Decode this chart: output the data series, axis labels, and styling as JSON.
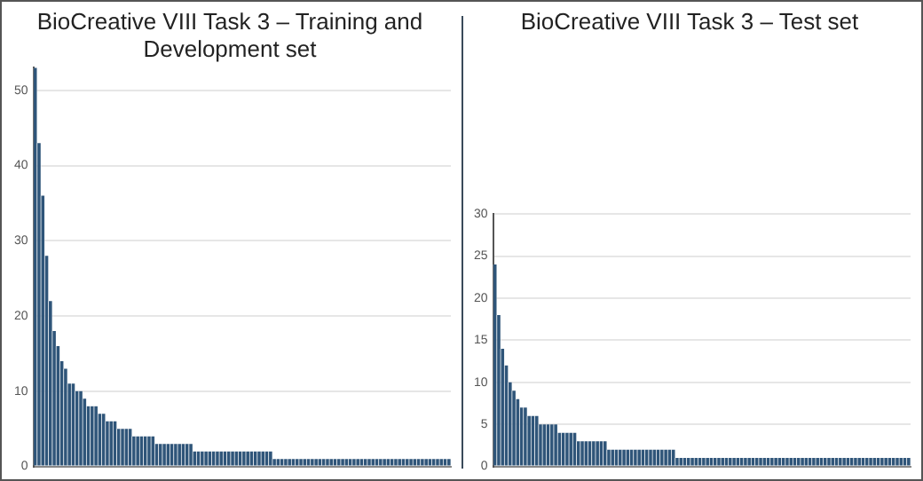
{
  "chart_data": [
    {
      "type": "bar",
      "title": "BioCreative VIII Task 3 – Training and Development set",
      "categories": [
        null,
        null,
        null,
        null,
        null,
        null,
        null,
        null,
        null,
        null,
        null,
        null,
        null,
        null,
        null,
        null,
        null,
        null,
        null,
        null,
        null,
        null,
        null,
        null,
        null,
        null,
        null,
        null,
        null,
        null,
        null,
        null,
        null,
        null,
        null,
        null,
        null,
        null,
        null,
        null,
        null,
        null,
        null,
        null,
        null,
        null,
        null,
        null,
        null,
        null,
        null,
        null,
        null,
        null,
        null,
        null,
        null,
        null,
        null,
        null,
        null,
        null,
        null,
        null,
        null,
        null,
        null,
        null,
        null,
        null,
        null,
        null,
        null,
        null,
        null,
        null,
        null,
        null,
        null,
        null,
        null,
        null,
        null,
        null,
        null,
        null,
        null,
        null,
        null,
        null,
        null,
        null,
        null,
        null,
        null,
        null,
        null,
        null,
        null,
        null,
        null,
        null,
        null,
        null,
        null,
        null,
        null,
        null,
        null,
        null
      ],
      "values": [
        53,
        43,
        36,
        28,
        22,
        18,
        16,
        14,
        13,
        11,
        11,
        10,
        10,
        9,
        8,
        8,
        8,
        7,
        7,
        6,
        6,
        6,
        5,
        5,
        5,
        5,
        4,
        4,
        4,
        4,
        4,
        4,
        3,
        3,
        3,
        3,
        3,
        3,
        3,
        3,
        3,
        3,
        2,
        2,
        2,
        2,
        2,
        2,
        2,
        2,
        2,
        2,
        2,
        2,
        2,
        2,
        2,
        2,
        2,
        2,
        2,
        2,
        2,
        1,
        1,
        1,
        1,
        1,
        1,
        1,
        1,
        1,
        1,
        1,
        1,
        1,
        1,
        1,
        1,
        1,
        1,
        1,
        1,
        1,
        1,
        1,
        1,
        1,
        1,
        1,
        1,
        1,
        1,
        1,
        1,
        1,
        1,
        1,
        1,
        1,
        1,
        1,
        1,
        1,
        1,
        1,
        1,
        1,
        1,
        1
      ],
      "color": "#2f5579",
      "ylim": [
        0,
        53
      ],
      "yticks": [
        0,
        10,
        20,
        30,
        40,
        50
      ],
      "grid": "y",
      "tick_labels": "y"
    },
    {
      "type": "bar",
      "title": "BioCreative VIII Task 3 – Test set",
      "categories": [
        null,
        null,
        null,
        null,
        null,
        null,
        null,
        null,
        null,
        null,
        null,
        null,
        null,
        null,
        null,
        null,
        null,
        null,
        null,
        null,
        null,
        null,
        null,
        null,
        null,
        null,
        null,
        null,
        null,
        null,
        null,
        null,
        null,
        null,
        null,
        null,
        null,
        null,
        null,
        null,
        null,
        null,
        null,
        null,
        null,
        null,
        null,
        null,
        null,
        null,
        null,
        null,
        null,
        null,
        null,
        null,
        null,
        null,
        null,
        null,
        null,
        null,
        null,
        null,
        null,
        null,
        null,
        null,
        null,
        null,
        null,
        null,
        null,
        null,
        null,
        null,
        null,
        null,
        null,
        null,
        null,
        null,
        null,
        null,
        null,
        null,
        null,
        null,
        null,
        null,
        null,
        null,
        null,
        null,
        null,
        null,
        null,
        null,
        null,
        null,
        null,
        null,
        null,
        null,
        null,
        null,
        null,
        null,
        null,
        null
      ],
      "values": [
        24,
        18,
        14,
        12,
        10,
        9,
        8,
        7,
        7,
        6,
        6,
        6,
        5,
        5,
        5,
        5,
        5,
        4,
        4,
        4,
        4,
        4,
        3,
        3,
        3,
        3,
        3,
        3,
        3,
        3,
        2,
        2,
        2,
        2,
        2,
        2,
        2,
        2,
        2,
        2,
        2,
        2,
        2,
        2,
        2,
        2,
        2,
        2,
        1,
        1,
        1,
        1,
        1,
        1,
        1,
        1,
        1,
        1,
        1,
        1,
        1,
        1,
        1,
        1,
        1,
        1,
        1,
        1,
        1,
        1,
        1,
        1,
        1,
        1,
        1,
        1,
        1,
        1,
        1,
        1,
        1,
        1,
        1,
        1,
        1,
        1,
        1,
        1,
        1,
        1,
        1,
        1,
        1,
        1,
        1,
        1,
        1,
        1,
        1,
        1,
        1,
        1,
        1,
        1,
        1,
        1,
        1,
        1,
        1,
        1
      ],
      "color": "#2f5579",
      "ylim": [
        0,
        30
      ],
      "yticks": [
        0,
        5,
        10,
        15,
        20,
        25,
        30
      ],
      "grid": "y",
      "tick_labels": "y"
    }
  ]
}
